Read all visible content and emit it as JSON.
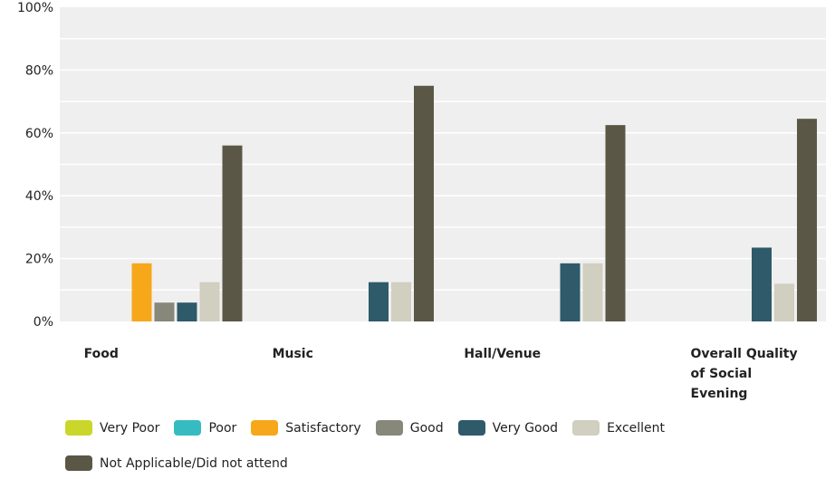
{
  "chart_data": {
    "type": "bar",
    "categories": [
      "Food",
      "Music",
      "Hall/Venue",
      "Overall Quality of Social Evening"
    ],
    "category_lines": [
      [
        "Food"
      ],
      [
        "Music"
      ],
      [
        "Hall/Venue"
      ],
      [
        "Overall Quality",
        "of Social",
        "Evening"
      ]
    ],
    "series": [
      {
        "name": "Very Poor",
        "color": "#cbd62a",
        "values": [
          0,
          0,
          0,
          0
        ]
      },
      {
        "name": "Poor",
        "color": "#36bcc0",
        "values": [
          0,
          0,
          0,
          0
        ]
      },
      {
        "name": "Satisfactory",
        "color": "#f6a81a",
        "values": [
          18.5,
          0,
          0,
          0
        ]
      },
      {
        "name": "Good",
        "color": "#87877a",
        "values": [
          6,
          0,
          0,
          0
        ]
      },
      {
        "name": "Very Good",
        "color": "#2e5a6a",
        "values": [
          6,
          12.5,
          18.5,
          23.5
        ]
      },
      {
        "name": "Excellent",
        "color": "#d0cfc0",
        "values": [
          12.5,
          12.5,
          18.5,
          12
        ]
      },
      {
        "name": "Not Applicable/Did not attend",
        "color": "#5b5746",
        "values": [
          56,
          75,
          62.5,
          64.5
        ]
      }
    ],
    "ytick_labels": [
      "0%",
      "20%",
      "40%",
      "60%",
      "80%",
      "100%"
    ],
    "ylim": [
      0,
      100
    ],
    "title": "",
    "xlabel": "",
    "ylabel": "",
    "grid": true,
    "legend": "bottom"
  }
}
